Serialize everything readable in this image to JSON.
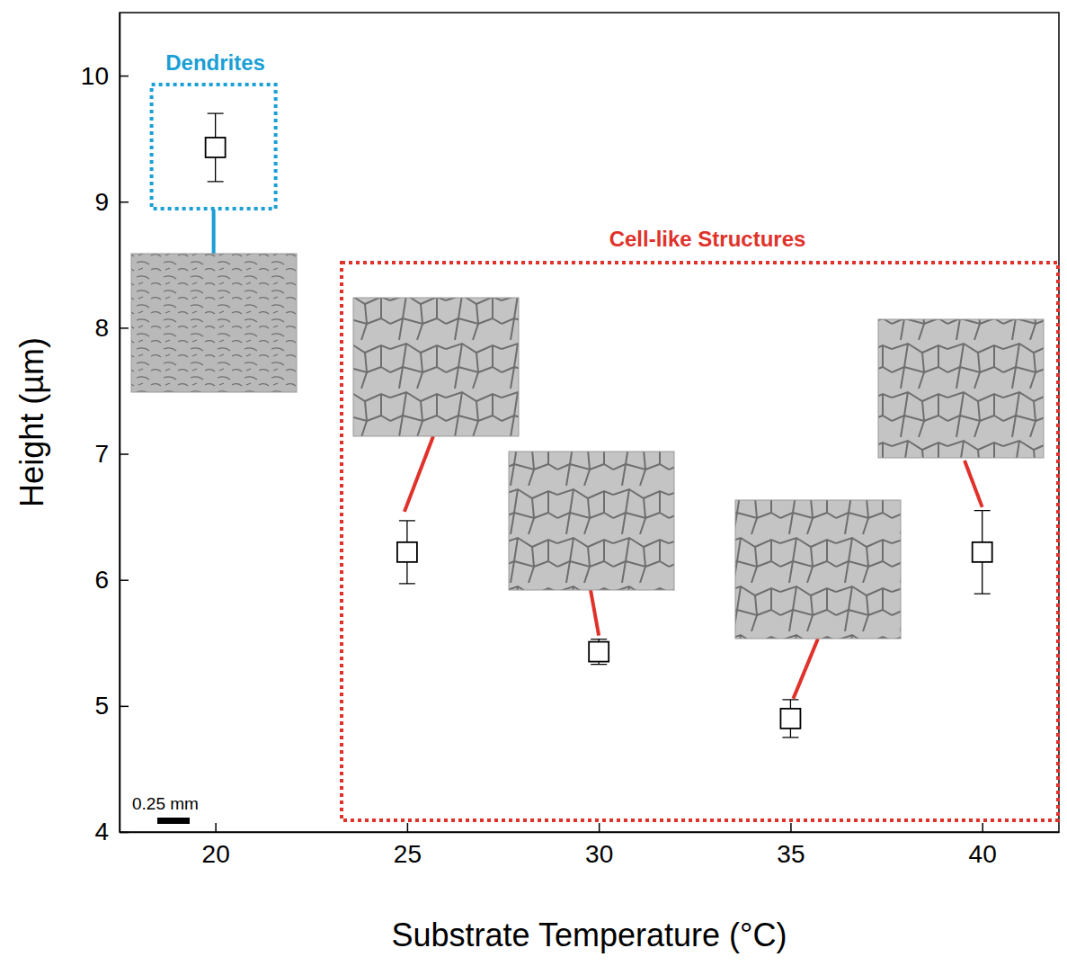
{
  "chart_data": {
    "type": "scatter",
    "x_label": "Substrate Temperature (°C)",
    "y_label": "Height (µm)",
    "x": [
      20,
      25,
      30,
      35,
      40
    ],
    "values": [
      9.43,
      6.22,
      5.43,
      4.9,
      6.22
    ],
    "errors": [
      0.27,
      0.25,
      0.1,
      0.15,
      0.33
    ],
    "xlim": [
      17.5,
      42
    ],
    "ylim": [
      4,
      10.5
    ],
    "xticks": [
      20,
      25,
      30,
      35,
      40
    ],
    "yticks": [
      4,
      5,
      6,
      7,
      8,
      9,
      10
    ],
    "marker": "square",
    "color": "#000000",
    "annotations": [
      "Dendrites",
      "Cell-like Structures",
      "0.25 mm"
    ]
  }
}
